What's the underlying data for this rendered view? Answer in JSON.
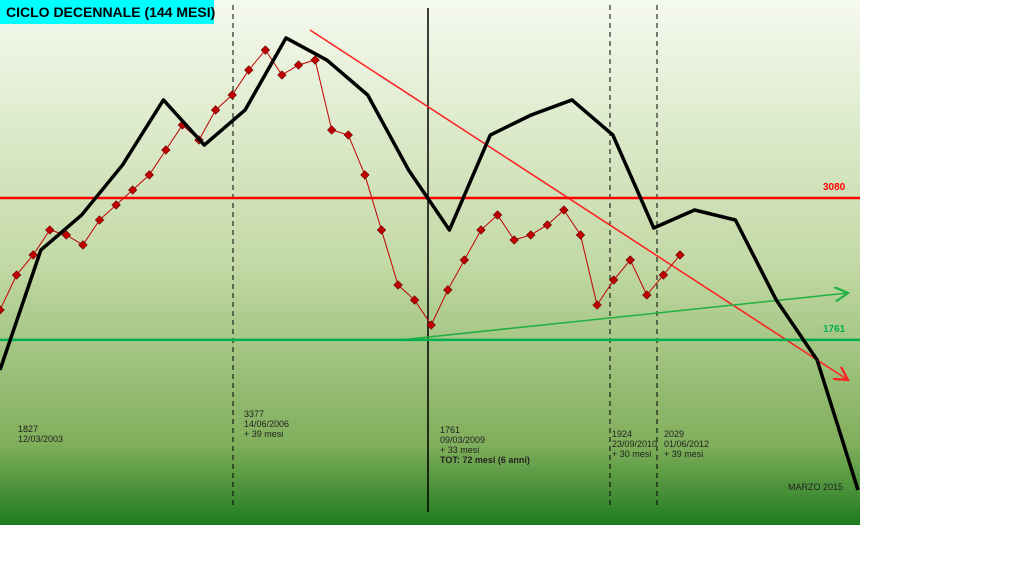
{
  "chart_data": {
    "type": "line",
    "title": "CICLO DECENNALE (144 MESI)",
    "ylim": [
      40,
      4920
    ],
    "levels": [
      {
        "value": 3080,
        "color": "#ff0000"
      },
      {
        "value": 1761,
        "color": "#00b050"
      }
    ],
    "series": [
      {
        "color": "#c00000",
        "markers": true,
        "values": [
          2039,
          2364,
          2550,
          2782,
          2736,
          2643,
          2875,
          3015,
          3154,
          3294,
          3526,
          3758,
          3619,
          3898,
          4037,
          4269,
          4455,
          4223,
          4316,
          4362,
          3712,
          3665,
          3294,
          2782,
          2271,
          2131,
          1899,
          2225,
          2503,
          2782,
          2922,
          2689,
          2736,
          2829,
          2968,
          2736,
          2085,
          2317,
          2503,
          2178,
          2364,
          2550
        ]
      },
      {
        "color": "#000000",
        "markers": false,
        "values": [
          1481,
          2596,
          2922,
          3387,
          3991,
          3572,
          3898,
          4567,
          4362,
          4037,
          3340,
          2782,
          3665,
          3851,
          3991,
          3665,
          2801,
          2968,
          2875,
          2131,
          1574,
          366
        ]
      }
    ],
    "annotations": [
      {
        "lines": [
          "1827",
          "12/03/2003"
        ]
      },
      {
        "lines": [
          "3377",
          "14/06/2006",
          "+ 39 mesi"
        ]
      },
      {
        "lines": [
          "1761",
          "09/03/2009",
          "+ 33 mesi",
          "TOT: 72 mesi (6 anni)"
        ]
      },
      {
        "lines": [
          "1924",
          "23/09/2010",
          "+ 30 mesi"
        ]
      },
      {
        "lines": [
          "2029",
          "01/06/2012",
          "+ 39 mesi"
        ]
      },
      {
        "lines": [
          "MARZO 2015"
        ]
      }
    ]
  }
}
